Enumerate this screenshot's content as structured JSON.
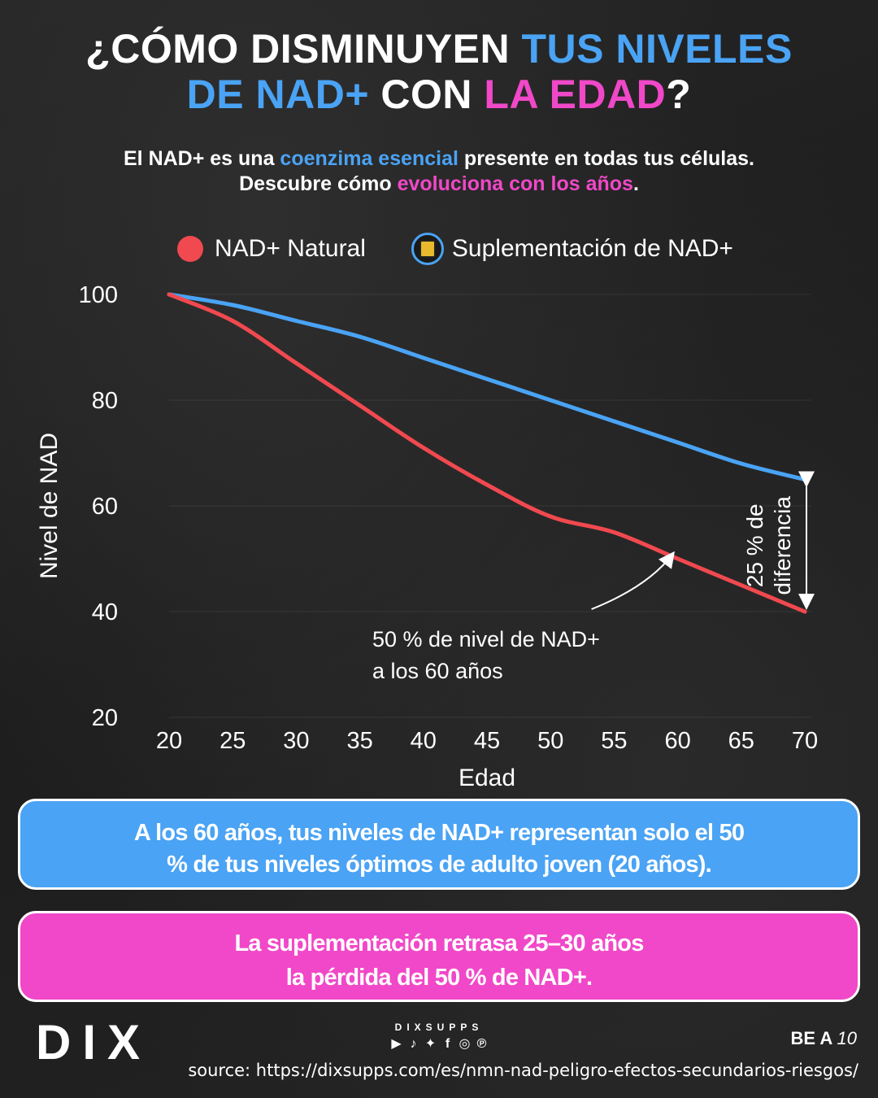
{
  "title": {
    "line1_white": "¿CÓMO DISMINUYEN ",
    "line1_blue": "TUS NIVELES",
    "line2_blue": "DE NAD+",
    "line2_white": " CON ",
    "line2_pink": "LA EDAD",
    "line2_end": "?"
  },
  "subtitle": {
    "part1": "El NAD+ es una ",
    "highlight1": "coenzima esencial",
    "part2": " presente en todas tus células.",
    "part3": "Descubre cómo ",
    "highlight2": "evoluciona con los años",
    "part4": "."
  },
  "legend": {
    "natural": "NAD+ Natural",
    "supplement": "Suplementación de NAD+"
  },
  "chart_data": {
    "type": "line",
    "xlabel": "Edad",
    "ylabel": "Nivel de NAD",
    "xlim": [
      20,
      70
    ],
    "ylim": [
      20,
      100
    ],
    "x_ticks": [
      20,
      25,
      30,
      35,
      40,
      45,
      50,
      55,
      60,
      65,
      70
    ],
    "y_ticks": [
      20,
      40,
      60,
      80,
      100
    ],
    "grid": "horizontal",
    "series": [
      {
        "name": "NAD+ Natural",
        "color": "#f0494f",
        "x": [
          20,
          25,
          30,
          35,
          40,
          45,
          50,
          55,
          60,
          65,
          70
        ],
        "y": [
          100,
          95,
          87,
          79,
          71,
          64,
          58,
          55,
          50,
          45,
          40
        ]
      },
      {
        "name": "Suplementación de NAD+",
        "color": "#4aa3f4",
        "x": [
          20,
          25,
          30,
          35,
          40,
          45,
          50,
          55,
          60,
          65,
          70
        ],
        "y": [
          100,
          98,
          95,
          92,
          88,
          84,
          80,
          76,
          72,
          68,
          65
        ]
      }
    ],
    "annotations": {
      "difference_line1": "25 % de",
      "difference_line2": "diferencia",
      "fifty_line1": "50 % de nivel de NAD+",
      "fifty_line2": "a los 60 años"
    }
  },
  "callouts": {
    "blue_line1": "A los 60 años, tus niveles de NAD+ representan solo el 50",
    "blue_line2": "% de tus niveles óptimos de adulto joven (20 años).",
    "pink_line1": "La suplementación retrasa 25–30 años",
    "pink_line2": "la  pérdida del 50 % de NAD+."
  },
  "footer": {
    "logo_text": "DIX",
    "brand_name": "DIXSUPPS",
    "tagline_bold": "BE A ",
    "tagline_italic": "10",
    "source": "source: https://dixsupps.com/es/nmn-nad-peligro-efectos-secundarios-riesgos/"
  },
  "social_icons": [
    "youtube-icon",
    "tiktok-icon",
    "twitter-icon",
    "facebook-icon",
    "instagram-icon",
    "pinterest-icon"
  ]
}
